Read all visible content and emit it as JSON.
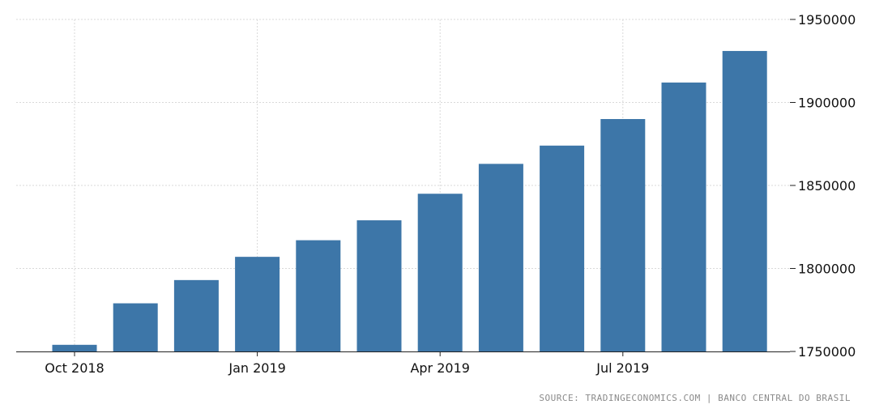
{
  "chart_data": {
    "type": "bar",
    "title": "",
    "xlabel": "",
    "ylabel": "",
    "categories": [
      "Oct 2018",
      "Nov 2018",
      "Dec 2018",
      "Jan 2019",
      "Feb 2019",
      "Mar 2019",
      "Apr 2019",
      "May 2019",
      "Jun 2019",
      "Jul 2019",
      "Aug 2019",
      "Sep 2019"
    ],
    "values": [
      1754000,
      1779000,
      1793000,
      1807000,
      1817000,
      1829000,
      1845000,
      1863000,
      1874000,
      1890000,
      1912000,
      1931000
    ],
    "x_tick_labels": [
      {
        "category": "Oct 2018",
        "label": "Oct 2018"
      },
      {
        "category": "Jan 2019",
        "label": "Jan 2019"
      },
      {
        "category": "Apr 2019",
        "label": "Apr 2019"
      },
      {
        "category": "Jul 2019",
        "label": "Jul 2019"
      }
    ],
    "y_ticks": [
      1750000,
      1800000,
      1850000,
      1900000,
      1950000
    ],
    "y_tick_labels": [
      "1750000",
      "1800000",
      "1850000",
      "1900000",
      "1950000"
    ],
    "ylim": [
      1750000,
      1950000
    ],
    "y_axis_position": "right",
    "grid": true,
    "legend": "none",
    "colors": {
      "bar": "#3d76a8",
      "grid": "#d9d9d9",
      "axis": "#222222",
      "source_text": "#8a8a8a"
    }
  },
  "source": {
    "text": "SOURCE: TRADINGECONOMICS.COM | BANCO CENTRAL DO BRASIL"
  }
}
